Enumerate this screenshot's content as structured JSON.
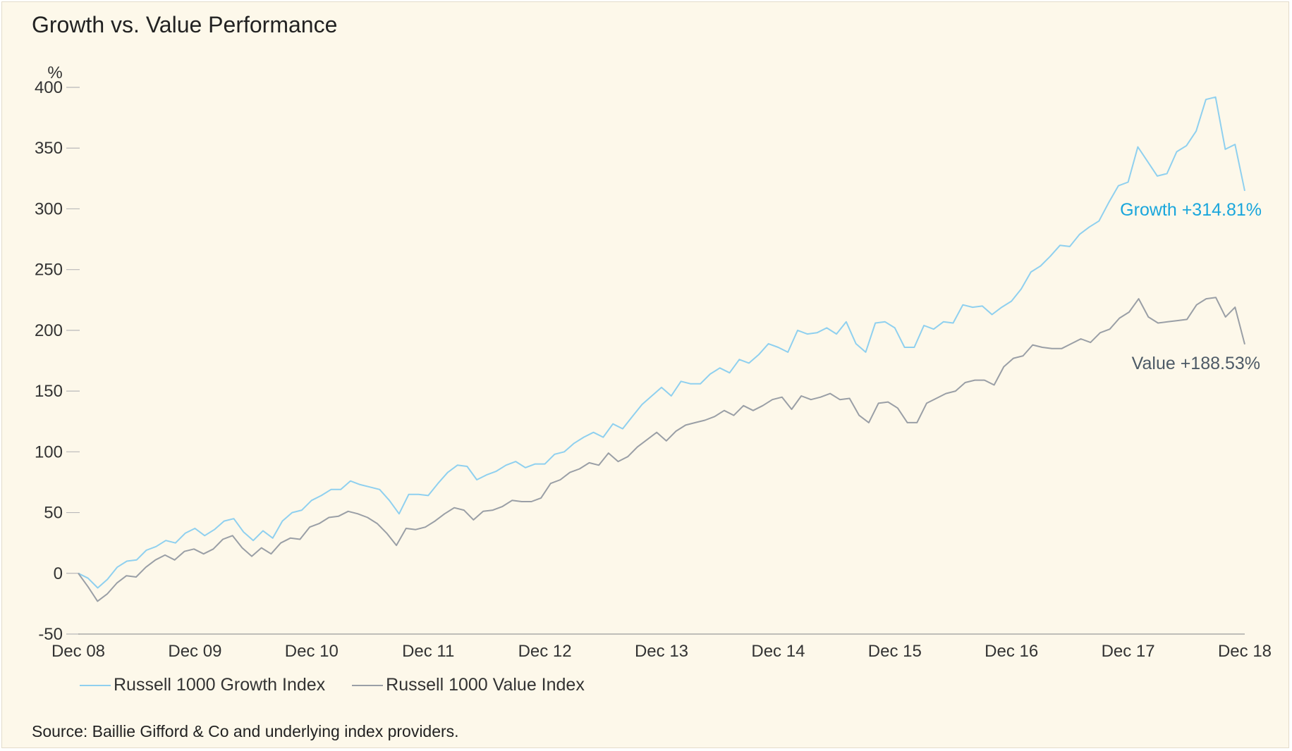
{
  "colors": {
    "growth": "#8fd0ef",
    "value": "#9a9fa6",
    "growth_label": "#1aa6dc",
    "value_label": "#4d5a66",
    "background": "#fdf8ea"
  },
  "source": "Source: Baillie Gifford & Co and underlying index providers.",
  "chart_data": {
    "type": "line",
    "title": "Growth vs. Value Performance",
    "ylabel": "%",
    "xlabel": "",
    "ylim": [
      -50,
      400
    ],
    "yticks": [
      400,
      350,
      300,
      250,
      200,
      150,
      100,
      50,
      0,
      -50
    ],
    "x_tick_labels": [
      "Dec 08",
      "Dec 09",
      "Dec 10",
      "Dec 11",
      "Dec 12",
      "Dec 13",
      "Dec 14",
      "Dec 15",
      "Dec 16",
      "Dec 17",
      "Dec 18"
    ],
    "x_range_months": [
      0,
      120
    ],
    "legend_position": "bottom-left",
    "series": [
      {
        "name": "Russell 1000 Growth Index",
        "color": "#8fd0ef",
        "end_label": "Growth +314.81%",
        "values": [
          0,
          -4,
          -12,
          -5,
          5,
          10,
          11,
          19,
          22,
          27,
          25,
          33,
          37,
          31,
          36,
          43,
          45,
          34,
          27,
          35,
          29,
          43,
          50,
          52,
          60,
          64,
          69,
          69,
          76,
          73,
          71,
          69,
          60,
          49,
          65,
          65,
          64,
          74,
          83,
          89,
          88,
          77,
          81,
          84,
          89,
          92,
          87,
          90,
          90,
          98,
          100,
          107,
          112,
          116,
          112,
          123,
          119,
          129,
          139,
          146,
          153,
          146,
          158,
          156,
          156,
          164,
          169,
          165,
          176,
          173,
          180,
          189,
          186,
          182,
          200,
          197,
          198,
          202,
          197,
          207,
          189,
          182,
          206,
          207,
          202,
          186,
          186,
          204,
          201,
          207,
          206,
          221,
          219,
          220,
          213,
          219,
          224,
          234,
          248,
          253,
          261,
          270,
          269,
          279,
          285,
          290,
          305,
          319,
          322,
          351,
          339,
          327,
          329,
          347,
          352,
          364,
          390,
          392,
          349,
          353,
          314.81
        ]
      },
      {
        "name": "Russell 1000 Value Index",
        "color": "#9a9fa6",
        "end_label": "Value +188.53%",
        "values": [
          0,
          -11,
          -23,
          -17,
          -8,
          -2,
          -3,
          5,
          11,
          15,
          11,
          18,
          20,
          16,
          20,
          28,
          31,
          21,
          14,
          21,
          16,
          25,
          29,
          28,
          38,
          41,
          46,
          47,
          51,
          49,
          46,
          41,
          33,
          23,
          37,
          36,
          38,
          43,
          49,
          54,
          52,
          44,
          51,
          52,
          55,
          60,
          59,
          59,
          62,
          74,
          77,
          83,
          86,
          91,
          89,
          99,
          92,
          96,
          104,
          110,
          116,
          109,
          117,
          122,
          124,
          126,
          129,
          134,
          130,
          138,
          134,
          138,
          143,
          145,
          135,
          146,
          143,
          145,
          148,
          143,
          144,
          130,
          124,
          140,
          141,
          136,
          124,
          124,
          140,
          144,
          148,
          150,
          157,
          159,
          159,
          155,
          170,
          177,
          179,
          188,
          186,
          185,
          185,
          189,
          193,
          190,
          198,
          201,
          210,
          215,
          226,
          211,
          206,
          207,
          208,
          209,
          221,
          226,
          227,
          211,
          219,
          188.53
        ]
      }
    ]
  }
}
